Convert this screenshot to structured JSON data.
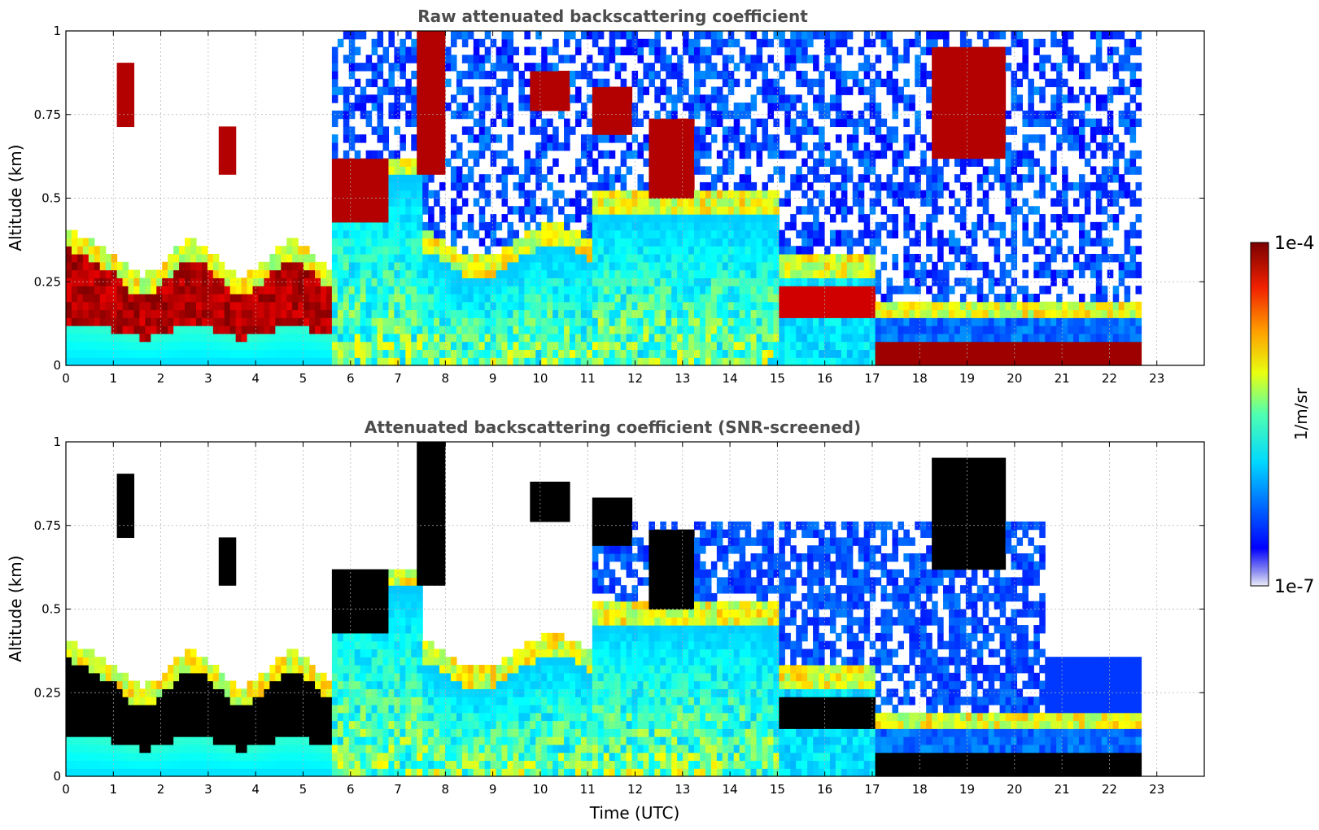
{
  "chart_data": [
    {
      "type": "heatmap",
      "title": "Raw attenuated backscattering coefficient",
      "xlabel": "",
      "ylabel": "Altitude (km)",
      "xlim": [
        0,
        24
      ],
      "ylim": [
        0,
        1
      ],
      "x_ticks": [
        "0",
        "1",
        "2",
        "3",
        "4",
        "5",
        "6",
        "7",
        "8",
        "9",
        "10",
        "11",
        "12",
        "13",
        "14",
        "15",
        "16",
        "17",
        "18",
        "19",
        "20",
        "21",
        "22",
        "23"
      ],
      "y_ticks": [
        "0",
        "0.25",
        "0.5",
        "0.75",
        "1"
      ],
      "grid": true,
      "data_end_time": 22.67,
      "screened": false,
      "colorscale": "jet",
      "missing_color": "#ffffff"
    },
    {
      "type": "heatmap",
      "title": "Attenuated backscattering coefficient (SNR-screened)",
      "xlabel": "Time (UTC)",
      "ylabel": "Altitude (km)",
      "xlim": [
        0,
        24
      ],
      "ylim": [
        0,
        1
      ],
      "x_ticks": [
        "0",
        "1",
        "2",
        "3",
        "4",
        "5",
        "6",
        "7",
        "8",
        "9",
        "10",
        "11",
        "12",
        "13",
        "14",
        "15",
        "16",
        "17",
        "18",
        "19",
        "20",
        "21",
        "22",
        "23"
      ],
      "y_ticks": [
        "0",
        "0.25",
        "0.5",
        "0.75",
        "1"
      ],
      "grid": true,
      "data_end_time": 22.67,
      "screened": true,
      "colorscale": "jet",
      "missing_color": "#ffffff",
      "saturated_color": "#000000"
    }
  ],
  "colorbar": {
    "label": "1/m/sr",
    "max_label": "1e-4",
    "min_label": "1e-7",
    "scale": "log"
  }
}
